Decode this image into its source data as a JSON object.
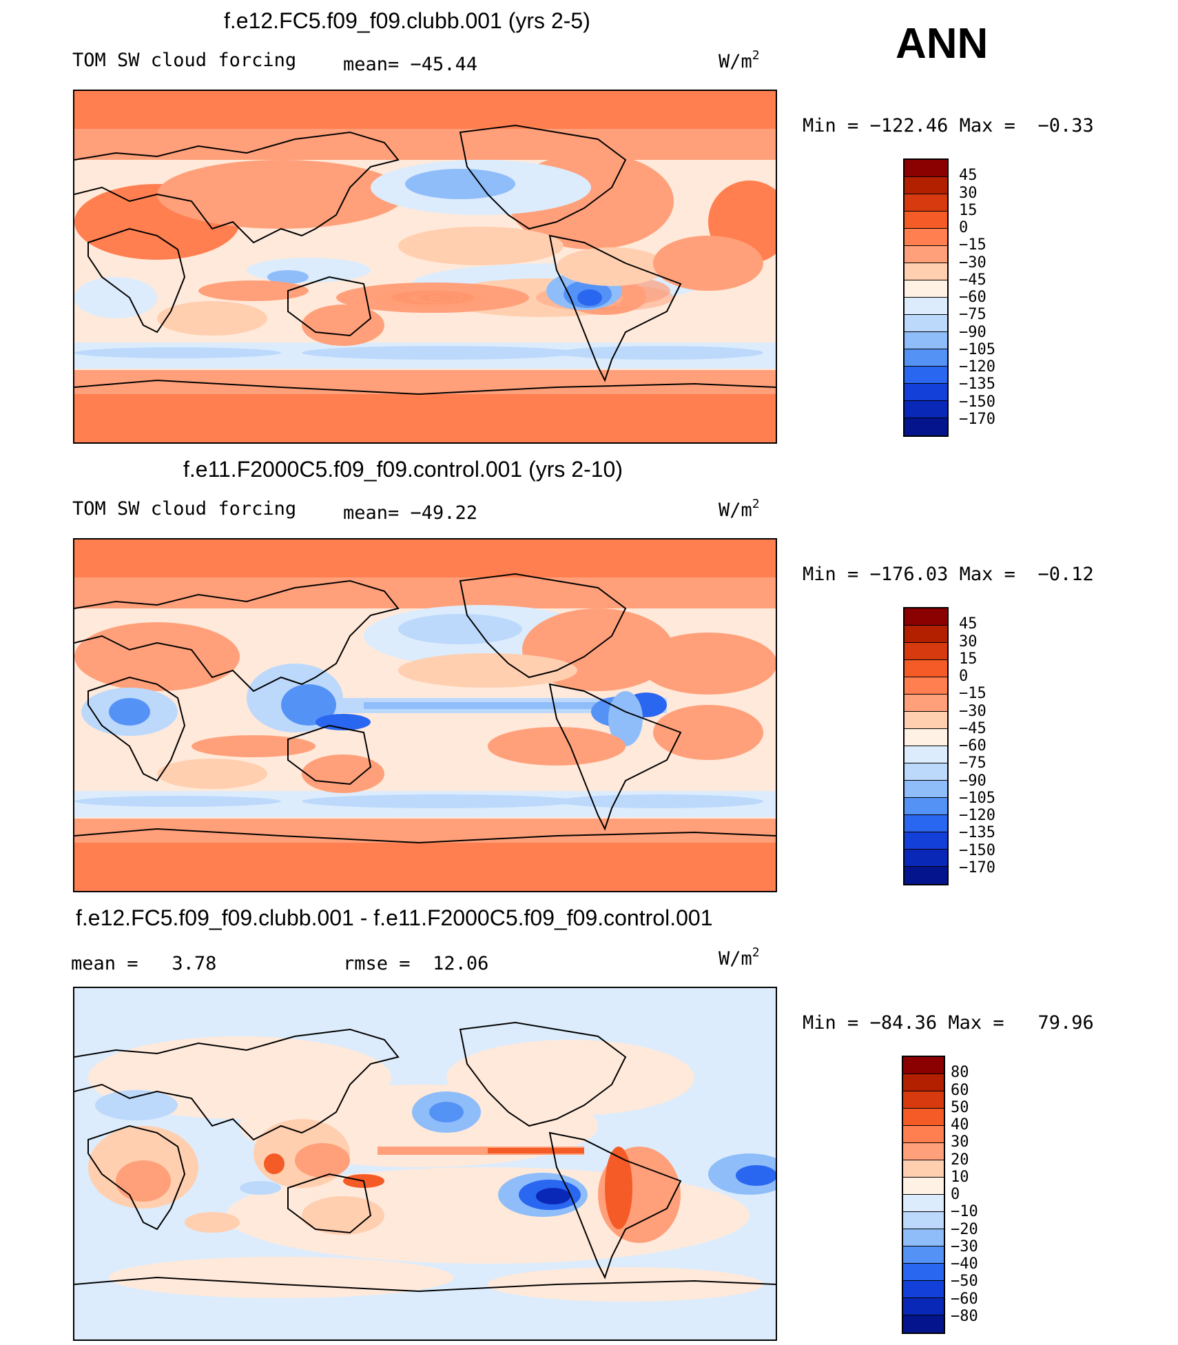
{
  "season": "ANN",
  "panels": [
    {
      "title": "f.e12.FC5.f09_f09.clubb.001 (yrs 2-5)",
      "variable": "TOM SW cloud forcing",
      "stat_label": "mean=",
      "stat_value": "−45.44",
      "units_base": "W/m",
      "units_exp": "2",
      "minmax": {
        "min_label": "Min",
        "min": "−122.46",
        "max_label": "Max",
        "max": "−0.33"
      },
      "colorbar": {
        "labels": [
          "45",
          "30",
          "15",
          "0",
          "−15",
          "−30",
          "−45",
          "−60",
          "−75",
          "−90",
          "−105",
          "−120",
          "−135",
          "−150",
          "−170"
        ],
        "colors": [
          "#8b0000",
          "#b22000",
          "#d83a10",
          "#f55b26",
          "#ff7f50",
          "#ffa07a",
          "#ffcfb0",
          "#fff1e4",
          "#dcecfc",
          "#bcd9fc",
          "#8fbdfa",
          "#5592f6",
          "#2a67f0",
          "#1240d8",
          "#0a28b8",
          "#03148c"
        ]
      }
    },
    {
      "title": "f.e11.F2000C5.f09_f09.control.001 (yrs 2-10)",
      "variable": "TOM SW cloud forcing",
      "stat_label": "mean=",
      "stat_value": "−49.22",
      "units_base": "W/m",
      "units_exp": "2",
      "minmax": {
        "min_label": "Min",
        "min": "−176.03",
        "max_label": "Max",
        "max": "−0.12"
      },
      "colorbar": {
        "labels": [
          "45",
          "30",
          "15",
          "0",
          "−15",
          "−30",
          "−45",
          "−60",
          "−75",
          "−90",
          "−105",
          "−120",
          "−135",
          "−150",
          "−170"
        ],
        "colors": [
          "#8b0000",
          "#b22000",
          "#d83a10",
          "#f55b26",
          "#ff7f50",
          "#ffa07a",
          "#ffcfb0",
          "#fff1e4",
          "#dcecfc",
          "#bcd9fc",
          "#8fbdfa",
          "#5592f6",
          "#2a67f0",
          "#1240d8",
          "#0a28b8",
          "#03148c"
        ]
      }
    },
    {
      "title": "f.e12.FC5.f09_f09.clubb.001 - f.e11.F2000C5.f09_f09.control.001",
      "stat_label": "mean =",
      "stat_value": "3.78",
      "stat2_label": "rmse =",
      "stat2_value": "12.06",
      "units_base": "W/m",
      "units_exp": "2",
      "minmax": {
        "min_label": "Min",
        "min": "−84.36",
        "max_label": "Max",
        "max": "79.96"
      },
      "colorbar": {
        "labels": [
          "80",
          "60",
          "50",
          "40",
          "30",
          "20",
          "10",
          "0",
          "−10",
          "−20",
          "−30",
          "−40",
          "−50",
          "−60",
          "−80"
        ],
        "colors": [
          "#8b0000",
          "#b22000",
          "#d83a10",
          "#f55b26",
          "#ff7f50",
          "#ffa07a",
          "#ffcfb0",
          "#fff1e4",
          "#dcecfc",
          "#bcd9fc",
          "#8fbdfa",
          "#5592f6",
          "#2a67f0",
          "#1240d8",
          "#0a28b8",
          "#03148c"
        ]
      }
    }
  ]
}
